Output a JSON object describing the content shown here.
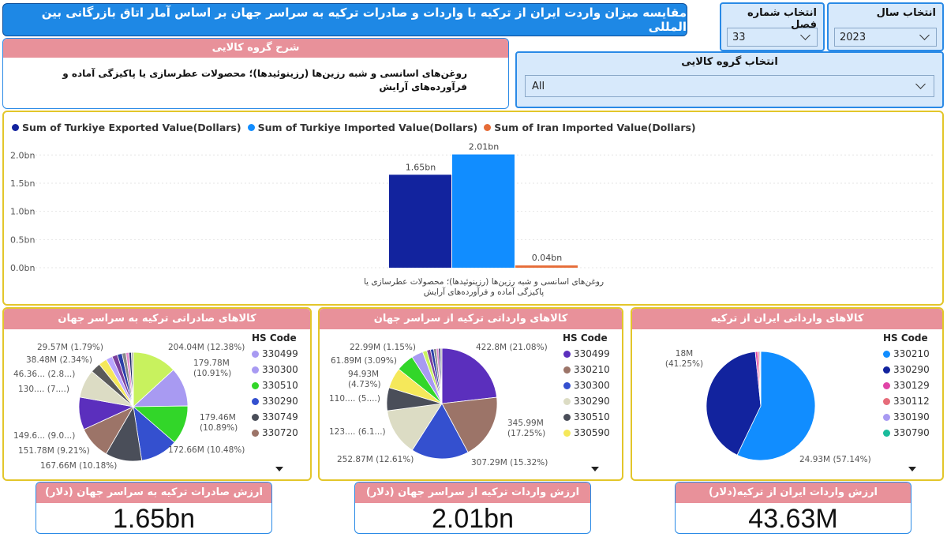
{
  "title": "مقایسه میزان واردت ایران از ترکیه با واردات و صادرات ترکیه به سراسر جهان بر اساس آمار اتاق بازرگانی بین المللی",
  "slicers": {
    "year": {
      "label": "انتخاب سال",
      "value": "2023"
    },
    "chapter": {
      "label": "انتخاب شماره فصل",
      "value": "33"
    },
    "group": {
      "label": "انتخاب گروه کالایی",
      "value": "All"
    }
  },
  "description": {
    "header": "شرح گروه کالایی",
    "text": "روغن‌های اسانسی و شبه رزین‌ها (رزینوئیدها)؛ محصولات عطرسازی یا پاکیزگی آماده و فرآورده‌های آرایش"
  },
  "chart_data": [
    {
      "type": "bar",
      "categories": [
        "روغن‌های اسانسی و شبه رزین‌ها (رزینوئیدها)؛ محصولات عطرسازی یا پاکیزگی آماده و فرآورده‌های آرایش"
      ],
      "series": [
        {
          "name": "Sum of Turkiye Exported Value(Dollars)",
          "color": "#12239e",
          "values": [
            1.65
          ],
          "label": "1.65bn"
        },
        {
          "name": "Sum of Turkiye Imported Value(Dollars)",
          "color": "#118dff",
          "values": [
            2.01
          ],
          "label": "2.01bn"
        },
        {
          "name": "Sum of Iran Imported Value(Dollars)",
          "color": "#e66c37",
          "values": [
            0.04
          ],
          "label": "0.04bn"
        }
      ],
      "yticks": [
        "0.0bn",
        "0.5bn",
        "1.0bn",
        "1.5bn",
        "2.0bn"
      ],
      "ylim": [
        0,
        2.2
      ]
    },
    {
      "type": "pie",
      "title": "کالاهای صادراتی ترکیه به سراسر جهان",
      "legend_title": "HS Code",
      "legend": [
        "330499",
        "330300",
        "330510",
        "330290",
        "330749",
        "330720"
      ],
      "slices": [
        {
          "value": 204.04,
          "color": "#c8f25e",
          "label": "204.04M (12.38%)"
        },
        {
          "value": 179.78,
          "color": "#a89af2",
          "label": "179.78M (10.91%)"
        },
        {
          "value": 179.46,
          "color": "#32d629",
          "label": "179.46M (10.89%)"
        },
        {
          "value": 172.66,
          "color": "#3450cf",
          "label": "172.66M (10.48%)"
        },
        {
          "value": 167.66,
          "color": "#4a4e59",
          "label": "167.66M (10.18%)"
        },
        {
          "value": 151.78,
          "color": "#9c7468",
          "label": "151.78M (9.21%)"
        },
        {
          "value": 149.6,
          "color": "#5b2fbd",
          "label": "149.6... (9.0...)"
        },
        {
          "value": 130,
          "color": "#dcdcc4",
          "label": "130.... (7....)"
        },
        {
          "value": 46.36,
          "color": "#5a5a5a",
          "label": "46.36... (2.8...)"
        },
        {
          "value": 38.48,
          "color": "#f5e85a",
          "label": "38.48M (2.34%)"
        },
        {
          "value": 29.57,
          "color": "#b9a6ff",
          "label": "29.57M (1.79%)"
        },
        {
          "value": 25,
          "color": "#7a3f9c",
          "label": ""
        },
        {
          "value": 22,
          "color": "#2b3fa8",
          "label": ""
        },
        {
          "value": 18,
          "color": "#8a8a8a",
          "label": ""
        },
        {
          "value": 14,
          "color": "#e38bcf",
          "label": ""
        },
        {
          "value": 11,
          "color": "#222b6a",
          "label": ""
        },
        {
          "value": 9,
          "color": "#b0b0b0",
          "label": ""
        }
      ]
    },
    {
      "type": "pie",
      "title": "کالاهای وارداتی ترکیه از سراسر جهان",
      "legend_title": "HS Code",
      "legend": [
        "330499",
        "330210",
        "330300",
        "330290",
        "330510",
        "330590"
      ],
      "slices": [
        {
          "value": 422.8,
          "color": "#5b2fbd",
          "label": "422.8M (21.08%)"
        },
        {
          "value": 345.99,
          "color": "#9c7468",
          "label": "345.99M (17.25%)"
        },
        {
          "value": 307.29,
          "color": "#3450cf",
          "label": "307.29M (15.32%)"
        },
        {
          "value": 252.87,
          "color": "#dcdcc4",
          "label": "252.87M (12.61%)"
        },
        {
          "value": 123,
          "color": "#4a4e59",
          "label": "123.... (6.1...)"
        },
        {
          "value": 110,
          "color": "#f5e85a",
          "label": "110.... (5....)"
        },
        {
          "value": 94.93,
          "color": "#32d629",
          "label": "94.93M (4.73%)"
        },
        {
          "value": 61.89,
          "color": "#a89af2",
          "label": "61.89M (3.09%)"
        },
        {
          "value": 22.99,
          "color": "#c8f25e",
          "label": "22.99M (1.15%)"
        },
        {
          "value": 20,
          "color": "#7a3f9c",
          "label": ""
        },
        {
          "value": 17,
          "color": "#2b3fa8",
          "label": ""
        },
        {
          "value": 14,
          "color": "#888888",
          "label": ""
        },
        {
          "value": 12,
          "color": "#e38bcf",
          "label": ""
        },
        {
          "value": 10,
          "color": "#222b6a",
          "label": ""
        },
        {
          "value": 8,
          "color": "#b0b0b0",
          "label": ""
        }
      ]
    },
    {
      "type": "pie",
      "title": "کالاهای وارداتی ایران از ترکیه",
      "legend_title": "HS Code",
      "legend": [
        "330210",
        "330290",
        "330129",
        "330112",
        "330190",
        "330790"
      ],
      "slices": [
        {
          "value": 24.93,
          "color": "#118dff",
          "label": "24.93M (57.14%)"
        },
        {
          "value": 18,
          "color": "#12239e",
          "label": "18M (41.25%)"
        },
        {
          "value": 0.3,
          "color": "#e044a7",
          "label": ""
        },
        {
          "value": 0.2,
          "color": "#e66c7a",
          "label": ""
        },
        {
          "value": 0.15,
          "color": "#a89af2",
          "label": ""
        },
        {
          "value": 0.05,
          "color": "#1abc9c",
          "label": ""
        }
      ]
    }
  ],
  "legend_colors": [
    [
      "#a89af2",
      "#a89af2",
      "#32d629",
      "#3450cf",
      "#4a4e59",
      "#9c7468"
    ],
    [
      "#5b2fbd",
      "#9c7468",
      "#3450cf",
      "#dcdcc4",
      "#4a4e59",
      "#f5e85a"
    ],
    [
      "#118dff",
      "#12239e",
      "#e044a7",
      "#e66c7a",
      "#a89af2",
      "#1abc9c"
    ]
  ],
  "kpis": [
    {
      "label": "ارزش صادرات ترکیه به سراسر جهان (دلار)",
      "value": "1.65bn"
    },
    {
      "label": "ارزش واردات ترکیه از سراسر جهان (دلار)",
      "value": "2.01bn"
    },
    {
      "label": "ارزش واردات ایران از ترکیه(دلار)",
      "value": "43.63M"
    }
  ]
}
